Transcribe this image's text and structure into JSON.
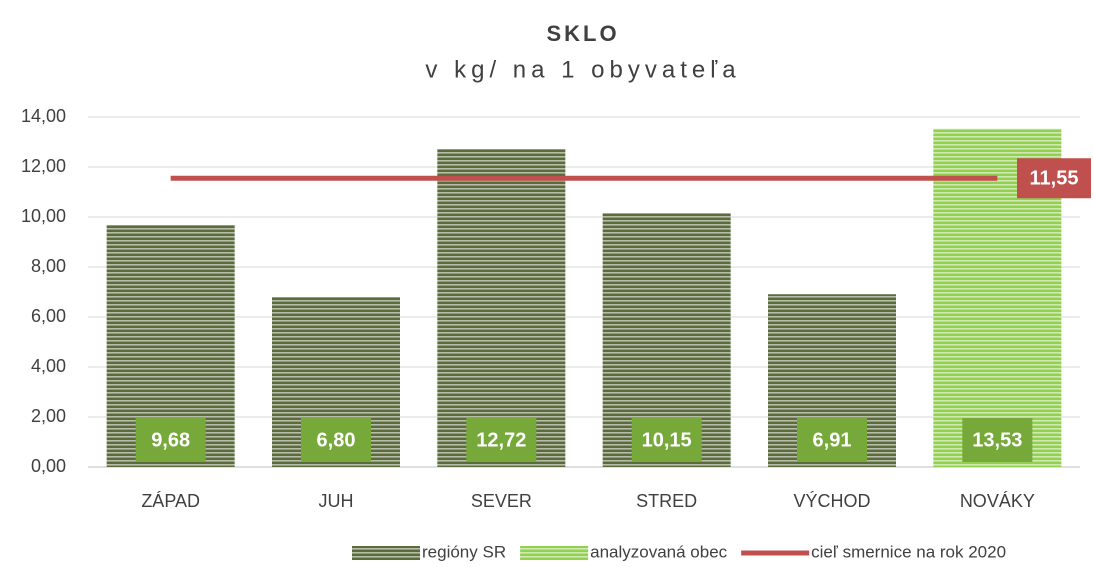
{
  "chart_data": {
    "type": "bar",
    "title": "SKLO",
    "subtitle": "v kg/ na 1 obyvateľa",
    "categories": [
      "ZÁPAD",
      "JUH",
      "SEVER",
      "STRED",
      "VÝCHOD",
      "NOVÁKY"
    ],
    "series": [
      {
        "name": "regióny SR",
        "color": "#5b6b3c",
        "values": [
          9.68,
          6.8,
          12.72,
          10.15,
          6.91,
          null
        ],
        "value_labels": [
          "9,68",
          "6,80",
          "12,72",
          "10,15",
          "6,91",
          null
        ]
      },
      {
        "name": "analyzovaná obec",
        "color": "#92d050",
        "values": [
          null,
          null,
          null,
          null,
          null,
          13.53
        ],
        "value_labels": [
          null,
          null,
          null,
          null,
          null,
          "13,53"
        ]
      }
    ],
    "target": {
      "name": "cieľ smernice na rok 2020",
      "color": "#c0504d",
      "value": 11.55,
      "value_label": "11,55"
    },
    "ylim": [
      0,
      14
    ],
    "yticks": [
      {
        "value": 0,
        "label": "0,00"
      },
      {
        "value": 2,
        "label": "2,00"
      },
      {
        "value": 4,
        "label": "4,00"
      },
      {
        "value": 6,
        "label": "6,00"
      },
      {
        "value": 8,
        "label": "8,00"
      },
      {
        "value": 10,
        "label": "10,00"
      },
      {
        "value": 12,
        "label": "12,00"
      },
      {
        "value": 14,
        "label": "14,00"
      }
    ],
    "grid": true
  }
}
